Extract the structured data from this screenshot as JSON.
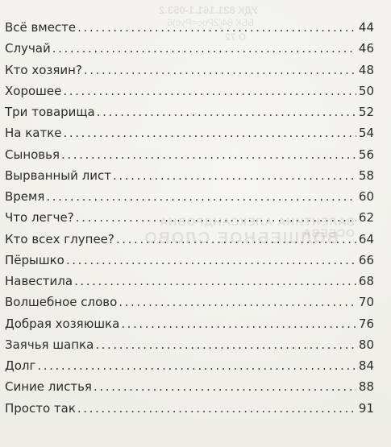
{
  "toc": [
    {
      "title": "Всё вместе",
      "page": "44"
    },
    {
      "title": "Случай",
      "page": "46"
    },
    {
      "title": "Кто хозяин?",
      "page": "48"
    },
    {
      "title": "Хорошее",
      "page": "50"
    },
    {
      "title": "Три товарища",
      "page": "52"
    },
    {
      "title": "На катке",
      "page": "54"
    },
    {
      "title": "Сыновья",
      "page": "56"
    },
    {
      "title": "Вырванный лист",
      "page": "58"
    },
    {
      "title": "Время",
      "page": "60"
    },
    {
      "title": "Что легче?",
      "page": "62"
    },
    {
      "title": "Кто всех глупее?",
      "page": "64"
    },
    {
      "title": "Пёрышко",
      "page": "66"
    },
    {
      "title": "Навестила",
      "page": "68"
    },
    {
      "title": "Волшебное слово",
      "page": "70"
    },
    {
      "title": "Добрая хозяюшка",
      "page": "76"
    },
    {
      "title": "Заячья шапка",
      "page": "80"
    },
    {
      "title": "Долг",
      "page": "84"
    },
    {
      "title": "Синие листья",
      "page": "88"
    },
    {
      "title": "Просто так",
      "page": "91"
    }
  ]
}
